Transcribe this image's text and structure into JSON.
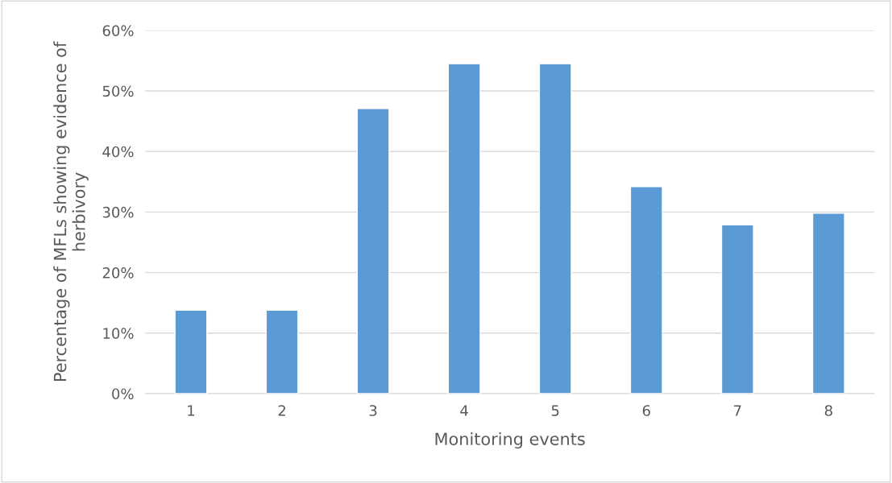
{
  "chart_data": {
    "type": "bar",
    "xlabel": "Monitoring events",
    "ylabel": "Percentage of MFLs showing evidence of\nherbivory",
    "categories": [
      "1",
      "2",
      "3",
      "4",
      "5",
      "6",
      "7",
      "8"
    ],
    "values": [
      13.8,
      13.8,
      47.1,
      54.5,
      54.5,
      34.2,
      27.9,
      29.8
    ],
    "color": "#5b9bd5",
    "ylim": [
      0,
      60
    ],
    "yticks": [
      {
        "value": 0,
        "label": "0%"
      },
      {
        "value": 10,
        "label": "10%"
      },
      {
        "value": 20,
        "label": "20%"
      },
      {
        "value": 30,
        "label": "30%"
      },
      {
        "value": 40,
        "label": "40%"
      },
      {
        "value": 50,
        "label": "50%"
      },
      {
        "value": 60,
        "label": "60%"
      }
    ],
    "grid": "y"
  }
}
